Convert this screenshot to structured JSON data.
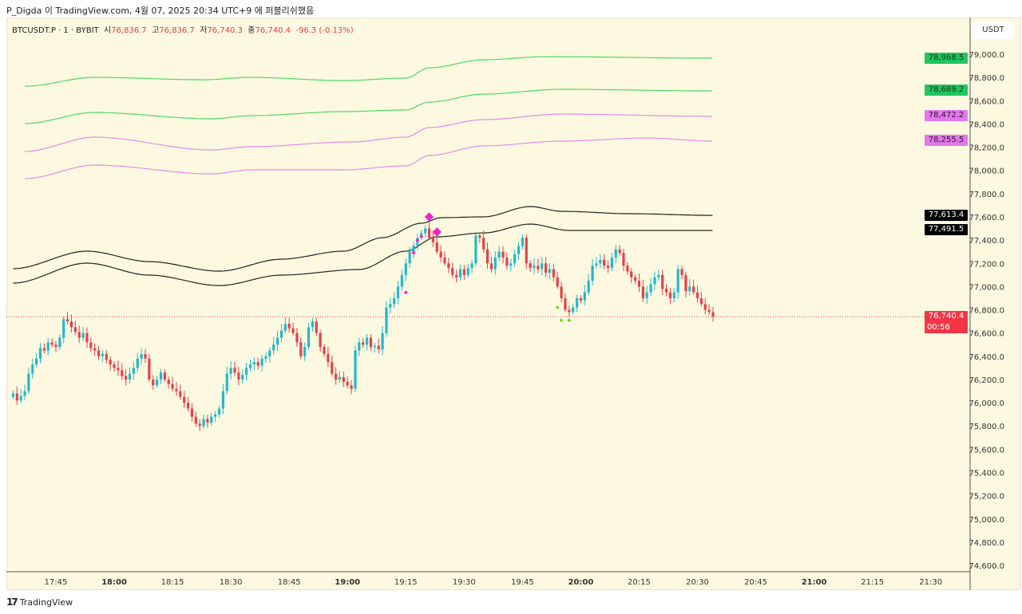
{
  "header": {
    "publish_line": "P_Digda 이 TradingView.com, 4월 07, 2025 20:34 UTC+9 에 퍼블리쉬했음"
  },
  "legend": {
    "symbol": "BTCUSDT.P · 1 · BYBIT",
    "open_label": "시",
    "open": "76,836.7",
    "high_label": "고",
    "high": "76,836.7",
    "low_label": "저",
    "low": "76,740.3",
    "close_label": "종",
    "close": "76,740.4",
    "change": "-96.3 (-0.13%)"
  },
  "price_axis": {
    "currency": "USDT",
    "ticks": [
      "79,000.0",
      "78,800.0",
      "78,600.0",
      "78,400.0",
      "78,200.0",
      "78,000.0",
      "77,800.0",
      "77,600.0",
      "77,400.0",
      "77,200.0",
      "77,000.0",
      "76,800.0",
      "76,600.0",
      "76,400.0",
      "76,200.0",
      "76,000.0",
      "75,800.0",
      "75,600.0",
      "75,400.0",
      "75,200.0",
      "75,000.0",
      "74,800.0",
      "74,600.0"
    ]
  },
  "price_labels": [
    {
      "text": "78,968.5",
      "value": 78968.5,
      "bg": "#22c55e",
      "fg": "#0a3d1b"
    },
    {
      "text": "78,689.2",
      "value": 78689.2,
      "bg": "#22c55e",
      "fg": "#0a3d1b"
    },
    {
      "text": "78,472.2",
      "value": 78472.2,
      "bg": "#e07ae8",
      "fg": "#3a0a3d"
    },
    {
      "text": "78,255.5",
      "value": 78255.5,
      "bg": "#e07ae8",
      "fg": "#3a0a3d"
    },
    {
      "text": "77,613.4",
      "value": 77613.4,
      "bg": "#000000",
      "fg": "#ffffff"
    },
    {
      "text": "77,491.5",
      "value": 77491.5,
      "bg": "#000000",
      "fg": "#ffffff"
    }
  ],
  "last_price": {
    "text": "76,740.4",
    "value": 76740.4,
    "countdown": "00:56",
    "bg": "#f23645"
  },
  "time_axis": {
    "labels": [
      {
        "t": "17:45",
        "bold": false
      },
      {
        "t": "18:00",
        "bold": true
      },
      {
        "t": "18:15",
        "bold": false
      },
      {
        "t": "18:30",
        "bold": false
      },
      {
        "t": "18:45",
        "bold": false
      },
      {
        "t": "19:00",
        "bold": true
      },
      {
        "t": "19:15",
        "bold": false
      },
      {
        "t": "19:30",
        "bold": false
      },
      {
        "t": "19:45",
        "bold": false
      },
      {
        "t": "20:00",
        "bold": true
      },
      {
        "t": "20:15",
        "bold": false
      },
      {
        "t": "20:30",
        "bold": false
      },
      {
        "t": "20:45",
        "bold": false
      },
      {
        "t": "21:00",
        "bold": true
      },
      {
        "t": "21:15",
        "bold": false
      },
      {
        "t": "21:30",
        "bold": false
      }
    ]
  },
  "footer": {
    "brand": "TradingView"
  },
  "chart_data": {
    "type": "candlestick",
    "title": "BTCUSDT.P · 1 · BYBIT",
    "interval_minutes": 1,
    "last_bar_time": "20:34",
    "ylim": [
      74500,
      79150
    ],
    "colors": {
      "up": "#22b8c8",
      "down": "#e5404b",
      "green_band": "#4cd964",
      "pink_band": "#e58ae8",
      "black_band": "#222222"
    },
    "first_open": 76050,
    "closes": [
      76080,
      76020,
      76060,
      76100,
      76250,
      76330,
      76380,
      76470,
      76450,
      76520,
      76500,
      76480,
      76560,
      76720,
      76700,
      76650,
      76610,
      76560,
      76600,
      76520,
      76470,
      76450,
      76400,
      76420,
      76370,
      76330,
      76300,
      76280,
      76230,
      76200,
      76250,
      76300,
      76380,
      76420,
      76380,
      76200,
      76150,
      76200,
      76260,
      76200,
      76160,
      76120,
      76100,
      76050,
      76000,
      75950,
      75880,
      75820,
      75800,
      75860,
      75830,
      75880,
      75900,
      75950,
      76100,
      76250,
      76300,
      76260,
      76200,
      76240,
      76300,
      76330,
      76350,
      76320,
      76380,
      76400,
      76450,
      76500,
      76560,
      76620,
      76680,
      76640,
      76600,
      76520,
      76400,
      76480,
      76650,
      76700,
      76600,
      76480,
      76420,
      76350,
      76250,
      76200,
      76220,
      76180,
      76150,
      76120,
      76450,
      76520,
      76500,
      76560,
      76480,
      76490,
      76460,
      76600,
      76820,
      76850,
      76900,
      77000,
      77100,
      77200,
      77300,
      77350,
      77420,
      77460,
      77500,
      77420,
      77380,
      77300,
      77250,
      77200,
      77160,
      77100,
      77080,
      77150,
      77100,
      77160,
      77200,
      77440,
      77420,
      77320,
      77200,
      77150,
      77250,
      77300,
      77250,
      77180,
      77200,
      77280,
      77350,
      77420,
      77200,
      77160,
      77180,
      77150,
      77200,
      77120,
      77150,
      77080,
      77000,
      76900,
      76800,
      76780,
      76820,
      76900,
      76880,
      76950,
      77050,
      77180,
      77200,
      77230,
      77180,
      77160,
      77250,
      77320,
      77290,
      77180,
      77130,
      77080,
      77050,
      77000,
      76900,
      76950,
      77020,
      77080,
      77100,
      76980,
      76950,
      76900,
      76950,
      77150,
      77100,
      76960,
      77000,
      76950,
      76900,
      76850,
      76800,
      76780,
      76740
    ],
    "bands": [
      {
        "name": "green-upper",
        "color": "#4cd964",
        "points": [
          [
            3,
            78725
          ],
          [
            21,
            78801
          ],
          [
            49,
            78780
          ],
          [
            61,
            78801
          ],
          [
            85,
            78773
          ],
          [
            101,
            78794
          ],
          [
            107,
            78883
          ],
          [
            121,
            78952
          ],
          [
            137,
            78979
          ],
          [
            180,
            78966
          ]
        ]
      },
      {
        "name": "green-lower",
        "color": "#4cd964",
        "points": [
          [
            3,
            78403
          ],
          [
            21,
            78499
          ],
          [
            51,
            78444
          ],
          [
            61,
            78471
          ],
          [
            85,
            78506
          ],
          [
            101,
            78520
          ],
          [
            107,
            78588
          ],
          [
            121,
            78657
          ],
          [
            141,
            78698
          ],
          [
            180,
            78684
          ]
        ]
      },
      {
        "name": "pink-upper",
        "color": "#e58ae8",
        "points": [
          [
            3,
            78163
          ],
          [
            21,
            78286
          ],
          [
            51,
            78176
          ],
          [
            61,
            78204
          ],
          [
            87,
            78245
          ],
          [
            101,
            78286
          ],
          [
            107,
            78369
          ],
          [
            121,
            78437
          ],
          [
            141,
            78485
          ],
          [
            180,
            78465
          ]
        ]
      },
      {
        "name": "pink-lower",
        "color": "#e58ae8",
        "points": [
          [
            3,
            77929
          ],
          [
            21,
            78046
          ],
          [
            51,
            77970
          ],
          [
            61,
            78005
          ],
          [
            85,
            78005
          ],
          [
            101,
            78039
          ],
          [
            107,
            78128
          ],
          [
            121,
            78211
          ],
          [
            141,
            78252
          ],
          [
            163,
            78279
          ],
          [
            180,
            78252
          ]
        ]
      },
      {
        "name": "black-upper",
        "color": "#222222",
        "points": [
          [
            0,
            77154
          ],
          [
            19,
            77305
          ],
          [
            35,
            77215
          ],
          [
            53,
            77133
          ],
          [
            69,
            77236
          ],
          [
            85,
            77305
          ],
          [
            95,
            77421
          ],
          [
            105,
            77545
          ],
          [
            110,
            77593
          ],
          [
            121,
            77600
          ],
          [
            133,
            77689
          ],
          [
            141,
            77648
          ],
          [
            159,
            77627
          ],
          [
            180,
            77613
          ]
        ]
      },
      {
        "name": "black-lower",
        "color": "#222222",
        "points": [
          [
            0,
            77030
          ],
          [
            19,
            77202
          ],
          [
            35,
            77099
          ],
          [
            53,
            77009
          ],
          [
            69,
            77099
          ],
          [
            89,
            77147
          ],
          [
            101,
            77305
          ],
          [
            109,
            77428
          ],
          [
            121,
            77462
          ],
          [
            133,
            77538
          ],
          [
            143,
            77483
          ],
          [
            159,
            77483
          ],
          [
            180,
            77483
          ]
        ]
      }
    ],
    "markers": [
      {
        "bar": 101,
        "price": 76950,
        "color": "#ee22cc",
        "size": "small"
      },
      {
        "bar": 103,
        "price": 77290,
        "color": "#ee22cc",
        "size": "small"
      },
      {
        "bar": 104,
        "price": 77400,
        "color": "#ee22cc",
        "size": "small"
      },
      {
        "bar": 105,
        "price": 77430,
        "color": "#ee22cc",
        "size": "small"
      },
      {
        "bar": 107,
        "price": 77600,
        "color": "#ee22cc",
        "size": "large"
      },
      {
        "bar": 109,
        "price": 77470,
        "color": "#ee22cc",
        "size": "large"
      },
      {
        "bar": 140,
        "price": 76820,
        "color": "#66dd22",
        "size": "small"
      },
      {
        "bar": 141,
        "price": 76710,
        "color": "#66dd22",
        "size": "small"
      },
      {
        "bar": 143,
        "price": 76710,
        "color": "#66dd22",
        "size": "small"
      }
    ]
  }
}
